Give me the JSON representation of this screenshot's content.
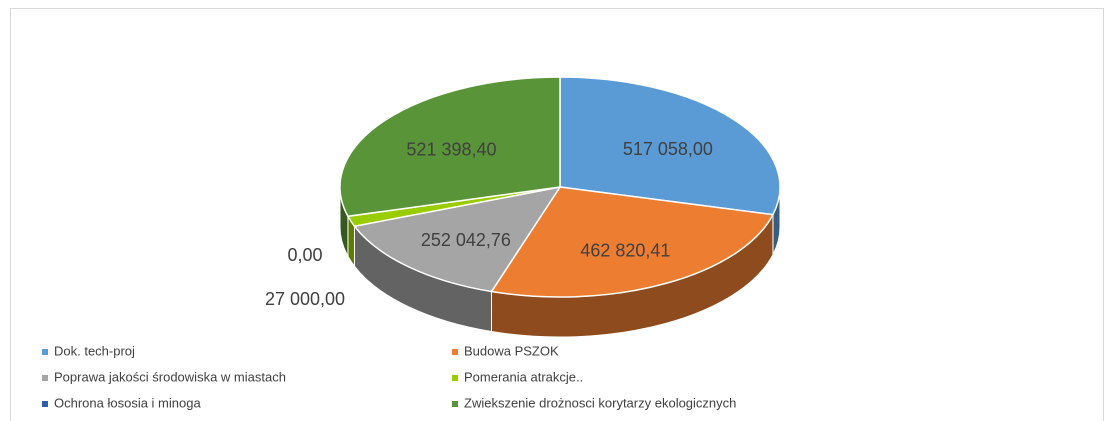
{
  "chart_data": {
    "type": "pie",
    "categories": [
      "Dok. tech-proj",
      "Budowa PSZOK",
      "Poprawa jakości środowiska w miastach",
      "Pomerania atrakcje..",
      "Ochrona łososia i minoga",
      "Zwiekszenie drożnosci korytarzy ekologicznych"
    ],
    "values": [
      517058.0,
      462820.41,
      252042.76,
      27000.0,
      0.0,
      521398.4
    ],
    "value_labels": [
      "517 058,00",
      "462 820,41",
      "252 042,76",
      "27 000,00",
      "0,00",
      "521 398,40"
    ],
    "colors": [
      "#5b9bd5",
      "#ed7d31",
      "#a5a5a5",
      "#9acd00",
      "#2e5fa8",
      "#5a9438"
    ],
    "legend": "bottom"
  }
}
